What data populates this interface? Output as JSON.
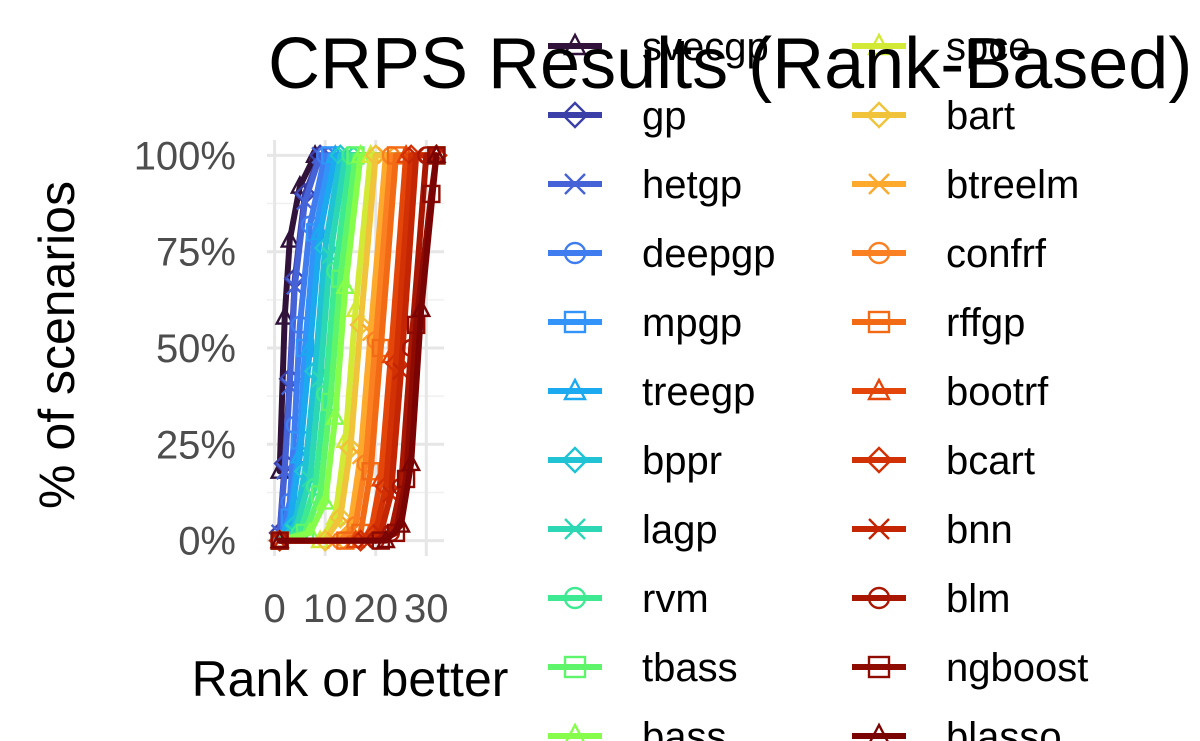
{
  "chart_data": {
    "type": "line",
    "title": "CRPS Results (Rank-Based)",
    "xlabel": "Rank or better",
    "ylabel": "% of scenarios",
    "x_ticks": [
      "0",
      "10",
      "20",
      "30"
    ],
    "y_ticks": [
      "0%",
      "25%",
      "50%",
      "75%",
      "100%"
    ],
    "xlim": [
      0,
      32
    ],
    "ylim": [
      0,
      1
    ],
    "grid": true,
    "legend_placement": "right",
    "series": [
      {
        "name": "svecgp",
        "color": "#30123b",
        "marker": "triangle",
        "x": [
          1,
          2,
          3,
          5,
          8,
          32
        ],
        "y": [
          0.18,
          0.58,
          0.78,
          0.92,
          1.0,
          1.0
        ]
      },
      {
        "name": "gp",
        "color": "#3b3fa8",
        "marker": "diamond",
        "x": [
          1,
          2,
          3,
          4,
          6,
          9,
          32
        ],
        "y": [
          0.02,
          0.2,
          0.42,
          0.68,
          0.9,
          1.0,
          1.0
        ]
      },
      {
        "name": "hetgp",
        "color": "#4662d7",
        "marker": "x",
        "x": [
          1,
          2,
          3,
          4,
          6,
          9,
          32
        ],
        "y": [
          0.02,
          0.18,
          0.4,
          0.66,
          0.88,
          1.0,
          1.0
        ]
      },
      {
        "name": "deepgp",
        "color": "#3f7cf0",
        "marker": "circle",
        "x": [
          1,
          3,
          4,
          5,
          7,
          10,
          32
        ],
        "y": [
          0.0,
          0.1,
          0.3,
          0.56,
          0.82,
          1.0,
          1.0
        ]
      },
      {
        "name": "mpgp",
        "color": "#3293f8",
        "marker": "square",
        "x": [
          1,
          3,
          5,
          6,
          8,
          11,
          32
        ],
        "y": [
          0.0,
          0.06,
          0.26,
          0.5,
          0.8,
          1.0,
          1.0
        ]
      },
      {
        "name": "treegp",
        "color": "#1ba9f0",
        "marker": "triangle",
        "x": [
          1,
          3,
          5,
          7,
          9,
          12,
          32
        ],
        "y": [
          0.0,
          0.04,
          0.22,
          0.5,
          0.8,
          1.0,
          1.0
        ]
      },
      {
        "name": "bppr",
        "color": "#1fc3d3",
        "marker": "diamond",
        "x": [
          1,
          4,
          6,
          8,
          10,
          13,
          32
        ],
        "y": [
          0.0,
          0.04,
          0.18,
          0.44,
          0.76,
          1.0,
          1.0
        ]
      },
      {
        "name": "lagp",
        "color": "#2cd7b4",
        "marker": "x",
        "x": [
          1,
          4,
          7,
          9,
          11,
          14,
          32
        ],
        "y": [
          0.0,
          0.02,
          0.16,
          0.42,
          0.74,
          1.0,
          1.0
        ]
      },
      {
        "name": "rvm",
        "color": "#3de991",
        "marker": "circle",
        "x": [
          1,
          5,
          8,
          10,
          12,
          15,
          32
        ],
        "y": [
          0.0,
          0.02,
          0.14,
          0.38,
          0.7,
          1.0,
          1.0
        ]
      },
      {
        "name": "tbass",
        "color": "#5ef56b",
        "marker": "square",
        "x": [
          1,
          6,
          9,
          11,
          13,
          16,
          32
        ],
        "y": [
          0.0,
          0.02,
          0.12,
          0.36,
          0.68,
          1.0,
          1.0
        ]
      },
      {
        "name": "bass",
        "color": "#85fd4a",
        "marker": "triangle",
        "x": [
          1,
          7,
          10,
          12,
          14,
          17,
          32
        ],
        "y": [
          0.0,
          0.02,
          0.1,
          0.32,
          0.66,
          1.0,
          1.0
        ]
      },
      {
        "name": "spce",
        "color": "#d2e935",
        "marker": "triangle",
        "x": [
          1,
          9,
          12,
          14,
          16,
          19,
          32
        ],
        "y": [
          0.0,
          0.0,
          0.06,
          0.26,
          0.6,
          1.0,
          1.0
        ]
      },
      {
        "name": "bart",
        "color": "#f0c33a",
        "marker": "diamond",
        "x": [
          1,
          10,
          13,
          15,
          17,
          20,
          32
        ],
        "y": [
          0.0,
          0.0,
          0.06,
          0.24,
          0.56,
          1.0,
          1.0
        ]
      },
      {
        "name": "btreelm",
        "color": "#fca92c",
        "marker": "x",
        "x": [
          1,
          12,
          15,
          17,
          19,
          22,
          32
        ],
        "y": [
          0.0,
          0.0,
          0.04,
          0.22,
          0.54,
          1.0,
          1.0
        ]
      },
      {
        "name": "confrf",
        "color": "#fb8022",
        "marker": "circle",
        "x": [
          1,
          13,
          16,
          18,
          20,
          23,
          32
        ],
        "y": [
          0.0,
          0.0,
          0.04,
          0.2,
          0.52,
          1.0,
          1.0
        ]
      },
      {
        "name": "rffgp",
        "color": "#f26a14",
        "marker": "square",
        "x": [
          1,
          14,
          17,
          19,
          21,
          24,
          32
        ],
        "y": [
          0.0,
          0.0,
          0.02,
          0.18,
          0.5,
          1.0,
          1.0
        ]
      },
      {
        "name": "bootrf",
        "color": "#e4460a",
        "marker": "triangle",
        "x": [
          1,
          16,
          19,
          21,
          23,
          26,
          32
        ],
        "y": [
          0.0,
          0.0,
          0.02,
          0.16,
          0.48,
          1.0,
          1.0
        ]
      },
      {
        "name": "bcart",
        "color": "#d23105",
        "marker": "diamond",
        "x": [
          1,
          17,
          20,
          22,
          24,
          27,
          32
        ],
        "y": [
          0.0,
          0.0,
          0.02,
          0.14,
          0.46,
          1.0,
          1.0
        ]
      },
      {
        "name": "bnn",
        "color": "#c42503",
        "marker": "x",
        "x": [
          1,
          18,
          21,
          23,
          25,
          28,
          32
        ],
        "y": [
          0.0,
          0.0,
          0.02,
          0.12,
          0.44,
          1.0,
          1.0
        ]
      },
      {
        "name": "blm",
        "color": "#a91601",
        "marker": "circle",
        "x": [
          1,
          20,
          23,
          25,
          27,
          30,
          32
        ],
        "y": [
          0.0,
          0.0,
          0.02,
          0.14,
          0.5,
          1.0,
          1.0
        ]
      },
      {
        "name": "ngboost",
        "color": "#8e0b01",
        "marker": "square",
        "x": [
          1,
          21,
          24,
          26,
          28,
          31,
          32
        ],
        "y": [
          0.0,
          0.0,
          0.02,
          0.16,
          0.56,
          0.9,
          1.0
        ]
      },
      {
        "name": "blasso",
        "color": "#7a0403",
        "marker": "triangle",
        "x": [
          1,
          22,
          25,
          27,
          29,
          32
        ],
        "y": [
          0.0,
          0.0,
          0.04,
          0.2,
          0.6,
          1.0
        ]
      }
    ]
  }
}
